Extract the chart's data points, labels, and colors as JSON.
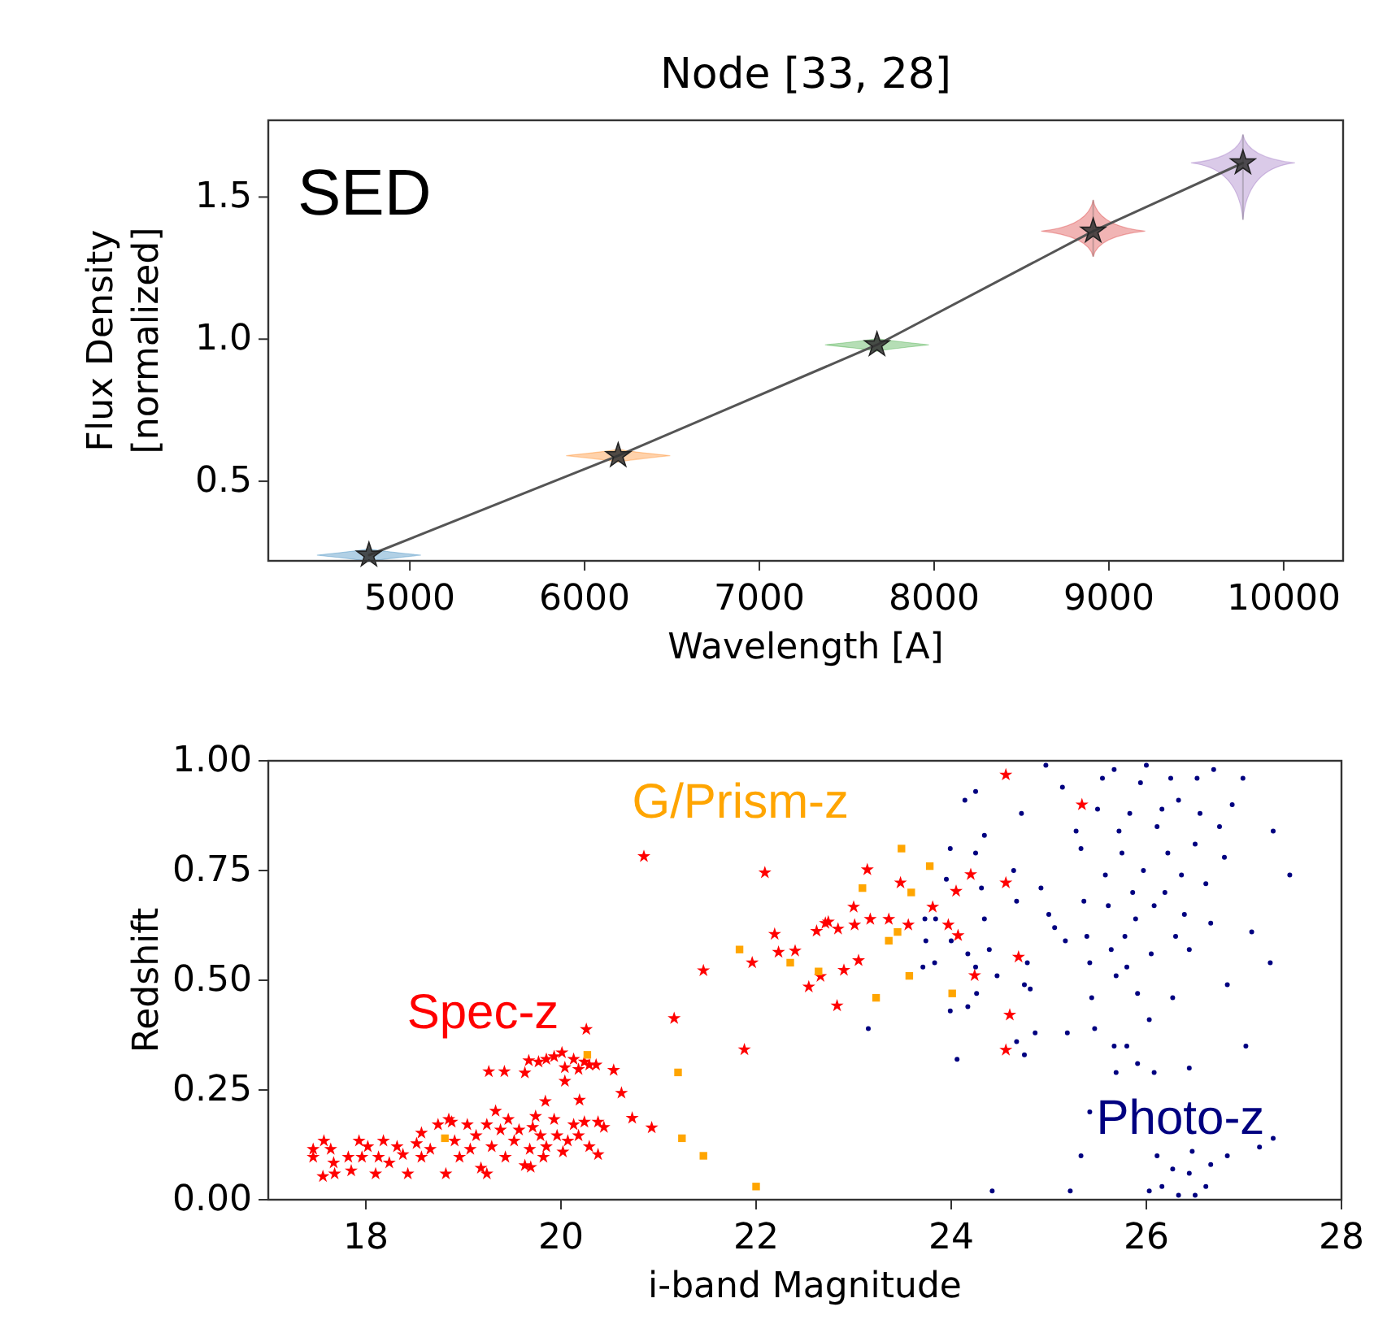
{
  "chart_data": [
    {
      "type": "line",
      "title": "Node [33, 28]",
      "xlabel": "Wavelength [A]",
      "ylabel": "Flux Density\n[normalized]",
      "annotations": [
        "SED"
      ],
      "xlim": [
        4190,
        10340
      ],
      "ylim": [
        0.22,
        1.77
      ],
      "xticks": [
        5000,
        6000,
        7000,
        8000,
        9000,
        10000
      ],
      "yticks": [
        0.5,
        {
          "value": 1.0,
          "label": "1.0"
        },
        1.5
      ],
      "grid": false,
      "legend": false,
      "series": [
        {
          "color": "#555555",
          "marker": "star",
          "line_style": "solid",
          "x": [
            4766,
            6192,
            7673,
            8910,
            9767
          ],
          "values": [
            0.24,
            0.59,
            0.98,
            1.38,
            1.62
          ],
          "errors": [
            null,
            null,
            null,
            [
              1.29,
              1.49
            ],
            [
              1.42,
              1.72
            ]
          ],
          "colors": [
            "#1f77b4",
            "#ff7f0e",
            "#2ca02c",
            "#d62728",
            "#9467bd"
          ]
        }
      ]
    },
    {
      "type": "scatter",
      "xlabel": "i-band Magnitude",
      "ylabel": "Redshift",
      "xlim": [
        17,
        28
      ],
      "ylim": [
        0,
        1
      ],
      "xticks": [
        18,
        20,
        22,
        24,
        26,
        28
      ],
      "yticks": [
        {
          "value": 0,
          "label": "0.00"
        },
        {
          "value": 0.25,
          "label": "0.25"
        },
        {
          "value": 0.5,
          "label": "0.50"
        },
        {
          "value": 0.75,
          "label": "0.75"
        },
        {
          "value": 1,
          "label": "1.00"
        }
      ],
      "grid": false,
      "legend": false,
      "series": [
        {
          "name": "Spec-z",
          "color": "#ff0000",
          "marker": "star",
          "x": [
            17.46,
            17.46,
            17.56,
            17.57,
            17.64,
            17.67,
            17.68,
            17.82,
            17.85,
            17.93,
            17.96,
            18.02,
            18.1,
            18.13,
            18.18,
            18.24,
            18.32,
            18.38,
            18.43,
            18.52,
            18.57,
            18.57,
            18.66,
            18.74,
            18.82,
            18.88,
            18.91,
            18.96,
            19.04,
            19.07,
            19.13,
            19.18,
            19.24,
            19.24,
            19.29,
            19.33,
            19.38,
            19.43,
            19.46,
            19.52,
            19.57,
            19.63,
            19.68,
            19.71,
            19.74,
            19.79,
            19.82,
            19.85,
            19.93,
            19.96,
            20.02,
            20.07,
            20.13,
            20.18,
            20.24,
            20.29,
            20.38,
            20.38,
            20.44,
            19.26,
            19.42,
            19.63,
            19.67,
            19.77,
            19.85,
            19.93,
            20.01,
            20.04,
            20.13,
            20.18,
            20.24,
            20.29,
            20.36,
            19.84,
            20.04,
            20.19,
            20.26,
            20.54,
            20.62,
            20.73,
            20.93,
            19.69,
            18.85,
            20.85,
            21.46,
            21.16,
            21.88,
            21.96,
            22.09,
            22.19,
            22.23,
            22.4,
            22.54,
            22.62,
            22.66,
            22.71,
            22.74,
            22.83,
            22.84,
            22.9,
            23.0,
            23.01,
            23.05,
            23.14,
            23.17,
            23.36,
            23.48,
            23.56,
            23.81,
            23.97,
            24.05,
            24.07,
            24.2,
            24.24,
            24.56,
            24.56,
            24.6,
            24.56,
            24.69,
            25.34
          ],
          "values": [
            0.115,
            0.097,
            0.053,
            0.134,
            0.115,
            0.084,
            0.059,
            0.097,
            0.066,
            0.134,
            0.097,
            0.121,
            0.059,
            0.097,
            0.134,
            0.084,
            0.121,
            0.103,
            0.059,
            0.128,
            0.152,
            0.097,
            0.115,
            0.171,
            0.059,
            0.177,
            0.134,
            0.097,
            0.171,
            0.115,
            0.146,
            0.072,
            0.171,
            0.059,
            0.121,
            0.202,
            0.159,
            0.097,
            0.183,
            0.134,
            0.159,
            0.078,
            0.115,
            0.165,
            0.19,
            0.146,
            0.097,
            0.121,
            0.183,
            0.146,
            0.109,
            0.134,
            0.171,
            0.146,
            0.177,
            0.121,
            0.177,
            0.103,
            0.165,
            0.292,
            0.292,
            0.289,
            0.317,
            0.314,
            0.32,
            0.326,
            0.335,
            0.301,
            0.32,
            0.297,
            0.314,
            0.307,
            0.307,
            0.224,
            0.27,
            0.227,
            0.388,
            0.295,
            0.243,
            0.186,
            0.164,
            0.074,
            0.183,
            0.782,
            0.522,
            0.413,
            0.342,
            0.54,
            0.745,
            0.605,
            0.564,
            0.567,
            0.485,
            0.612,
            0.509,
            0.63,
            0.633,
            0.442,
            0.617,
            0.523,
            0.667,
            0.626,
            0.545,
            0.752,
            0.639,
            0.639,
            0.722,
            0.626,
            0.667,
            0.626,
            0.703,
            0.602,
            0.741,
            0.511,
            0.968,
            0.722,
            0.421,
            0.341,
            0.553,
            0.9
          ]
        },
        {
          "name": "G/Prism-z",
          "color": "#ffa500",
          "marker": "square",
          "x": [
            18.81,
            20.27,
            21.2,
            21.83,
            21.24,
            21.46,
            22.0,
            22.35,
            22.64,
            23.09,
            23.23,
            23.36,
            23.45,
            23.49,
            23.59,
            23.57,
            23.78,
            24.01
          ],
          "values": [
            0.14,
            0.33,
            0.29,
            0.57,
            0.14,
            0.1,
            0.03,
            0.54,
            0.52,
            0.71,
            0.46,
            0.59,
            0.61,
            0.8,
            0.7,
            0.51,
            0.76,
            0.47
          ]
        },
        {
          "name": "Photo-z",
          "color": "#000080",
          "marker": "circle",
          "x": [
            24.14,
            24.25,
            24.34,
            23.99,
            24.25,
            23.95,
            24.31,
            23.73,
            23.84,
            24.0,
            23.74,
            23.71,
            23.83,
            24.17,
            24.25,
            24.34,
            24.39,
            24.47,
            24.26,
            24.17,
            23.99,
            24.06,
            23.15,
            24.42,
            24.64,
            24.67,
            24.72,
            24.78,
            24.75,
            24.81,
            24.67,
            24.75,
            24.86,
            24.92,
            24.97,
            25.0,
            25.06,
            25.14,
            25.17,
            25.19,
            25.22,
            25.28,
            25.33,
            25.36,
            25.39,
            25.42,
            25.44,
            25.47,
            25.5,
            25.55,
            25.58,
            25.61,
            25.64,
            25.67,
            25.69,
            25.72,
            25.75,
            25.78,
            25.8,
            25.83,
            25.86,
            25.89,
            25.91,
            25.94,
            25.97,
            26.0,
            26.03,
            26.05,
            26.08,
            26.11,
            26.16,
            26.19,
            26.22,
            26.25,
            26.27,
            26.3,
            26.33,
            26.36,
            26.39,
            26.44,
            26.5,
            26.52,
            26.55,
            26.61,
            26.66,
            26.69,
            26.75,
            26.8,
            26.83,
            26.88,
            26.99,
            27.02,
            27.08,
            27.27,
            27.3,
            27.47,
            27.3,
            27.16,
            26.83,
            26.66,
            26.61,
            26.5,
            26.47,
            26.44,
            26.33,
            26.27,
            26.16,
            26.11,
            26.03,
            25.33,
            25.69,
            25.91,
            26.08,
            26.44,
            25.42,
            25.8,
            25.67
          ],
          "values": [
            0.91,
            0.93,
            0.83,
            0.8,
            0.79,
            0.73,
            0.71,
            0.64,
            0.64,
            0.59,
            0.59,
            0.53,
            0.54,
            0.56,
            0.53,
            0.64,
            0.57,
            0.51,
            0.47,
            0.44,
            0.43,
            0.32,
            0.39,
            0.02,
            0.75,
            0.68,
            0.88,
            0.54,
            0.49,
            0.48,
            0.36,
            0.33,
            0.38,
            0.71,
            0.99,
            0.65,
            0.62,
            0.94,
            0.59,
            0.38,
            0.02,
            0.84,
            0.8,
            0.68,
            0.6,
            0.54,
            0.46,
            0.39,
            0.89,
            0.96,
            0.74,
            0.67,
            0.57,
            0.98,
            0.51,
            0.84,
            0.79,
            0.6,
            0.53,
            0.88,
            0.7,
            0.64,
            0.47,
            0.95,
            0.75,
            0.99,
            0.41,
            0.56,
            0.67,
            0.85,
            0.89,
            0.7,
            0.79,
            0.96,
            0.46,
            0.6,
            0.91,
            0.74,
            0.65,
            0.57,
            0.81,
            0.96,
            0.88,
            0.72,
            0.63,
            0.98,
            0.85,
            0.78,
            0.49,
            0.9,
            0.96,
            0.35,
            0.61,
            0.54,
            0.84,
            0.74,
            0.14,
            0.12,
            0.1,
            0.08,
            0.03,
            0.01,
            0.11,
            0.06,
            0.01,
            0.07,
            0.03,
            0.1,
            0.02,
            0.1,
            0.29,
            0.31,
            0.29,
            0.3,
            0.2,
            0.35,
            0.35
          ]
        }
      ]
    }
  ]
}
